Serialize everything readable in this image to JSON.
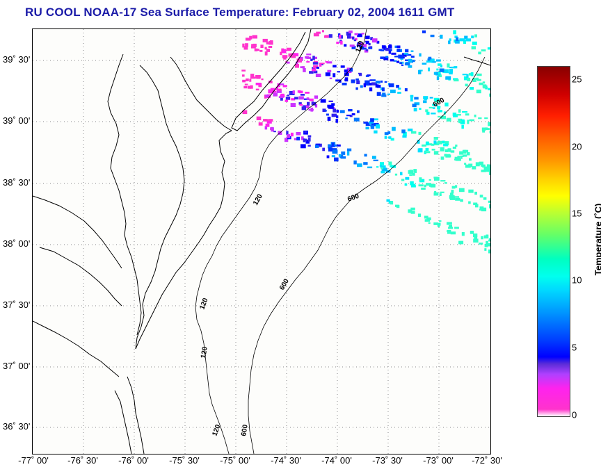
{
  "title": "RU COOL  NOAA-17  Sea Surface Temperature:  February 02, 2004 1611 GMT",
  "y_axis": {
    "labels": [
      "39˚ 30'",
      "39˚ 00'",
      "38˚ 30'",
      "38˚ 00'",
      "37˚ 30'",
      "37˚ 00'",
      "36˚ 30'"
    ]
  },
  "x_axis": {
    "labels": [
      "-77˚ 00'",
      "-76˚ 30'",
      "-76˚ 00'",
      "-75˚ 30'",
      "-75˚ 00'",
      "-74˚ 30'",
      "-74˚ 00'",
      "-73˚ 30'",
      "-73˚ 00'",
      "-72˚ 30'"
    ]
  },
  "colorbar": {
    "label": "Temperature (˚C)",
    "ticks": [
      "25",
      "20",
      "15",
      "10",
      "5",
      "0"
    ]
  },
  "isobaths": [
    "120",
    "600",
    "120",
    "120",
    "600",
    "120",
    "600",
    "120",
    "600"
  ]
}
